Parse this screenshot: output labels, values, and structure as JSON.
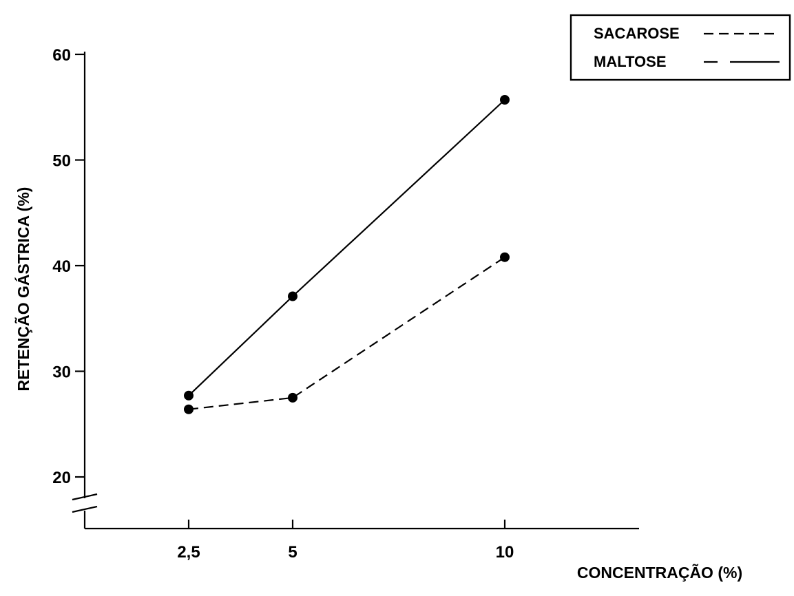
{
  "chart_data": {
    "type": "line",
    "xlabel": "CONCENTRAÇÃO (%)",
    "ylabel": "RETENÇÃO GÁSTRICA (%)",
    "x": [
      2.5,
      5,
      10
    ],
    "x_tick_labels": [
      "2,5",
      "5",
      "10"
    ],
    "y_ticks": [
      20,
      30,
      40,
      50,
      60
    ],
    "ylim": [
      15,
      60
    ],
    "y_axis_break": true,
    "grid": false,
    "legend_position": "top-right",
    "series": [
      {
        "name": "SACAROSE",
        "line_style": "dashed",
        "color": "#000000",
        "values": [
          26.4,
          27.5,
          40.8
        ]
      },
      {
        "name": "MALTOSE",
        "line_style": "solid",
        "color": "#000000",
        "values": [
          27.7,
          37.1,
          55.7
        ]
      }
    ]
  }
}
